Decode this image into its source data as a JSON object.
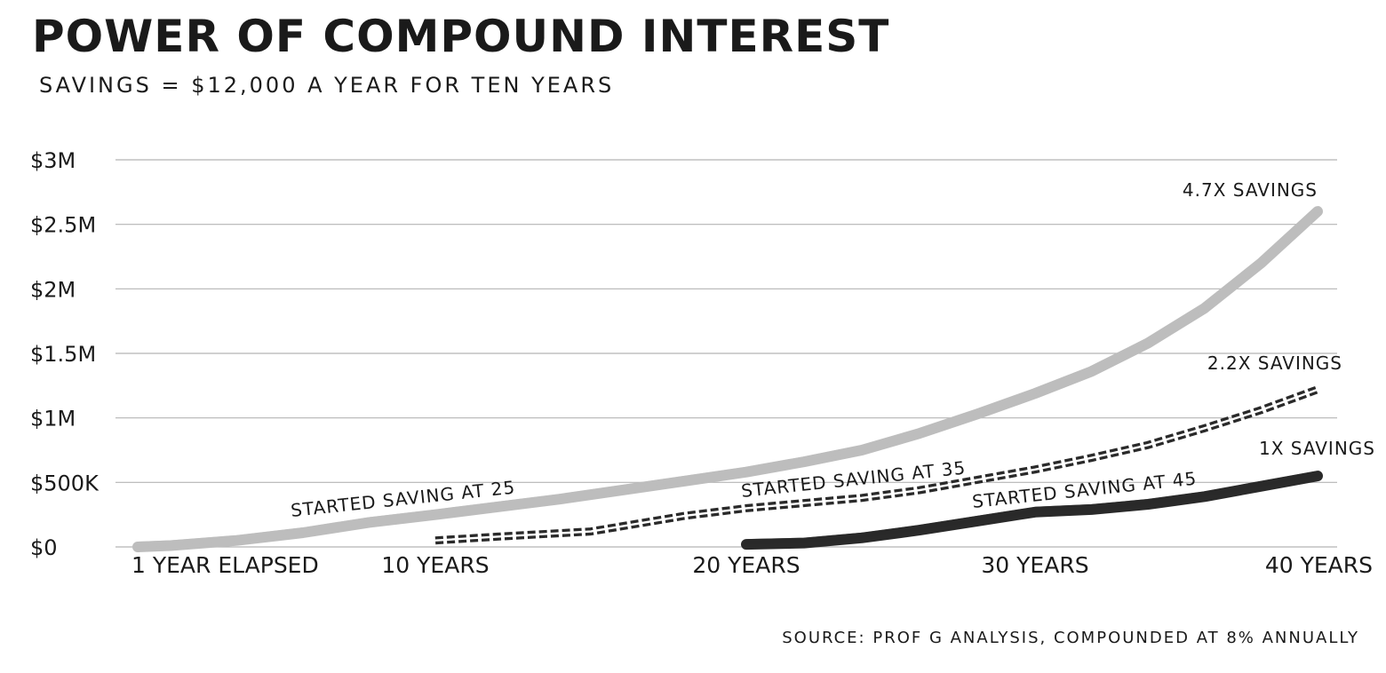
{
  "chart_data": {
    "type": "line",
    "title": "POWER OF COMPOUND INTEREST",
    "subtitle": "SAVINGS = $12,000 A YEAR FOR TEN YEARS",
    "source": "SOURCE: PROF G ANALYSIS, COMPOUNDED AT 8% ANNUALLY",
    "ylim": [
      0,
      3000000
    ],
    "xlim": [
      1,
      40
    ],
    "grid": true,
    "yticks": [
      {
        "value": 0,
        "label": "$0"
      },
      {
        "value": 500000,
        "label": "$500K"
      },
      {
        "value": 1000000,
        "label": "$1M"
      },
      {
        "value": 1500000,
        "label": "$1.5M"
      },
      {
        "value": 2000000,
        "label": "$2M"
      },
      {
        "value": 2500000,
        "label": "$2.5M"
      },
      {
        "value": 3000000,
        "label": "$3M"
      }
    ],
    "xticks": [
      {
        "value": 1,
        "label": "1 YEAR ELAPSED"
      },
      {
        "value": 10,
        "label": "10 YEARS"
      },
      {
        "value": 20,
        "label": "20 YEARS"
      },
      {
        "value": 30,
        "label": "30 YEARS"
      },
      {
        "value": 40,
        "label": "40 YEARS"
      }
    ],
    "series": [
      {
        "name": "STARTED SAVING AT 25",
        "end_label": "4.7X SAVINGS",
        "color": "#bdbdbd",
        "style": "thick",
        "points": [
          [
            1,
            0
          ],
          [
            2,
            10000
          ],
          [
            4,
            50000
          ],
          [
            6,
            110000
          ],
          [
            8,
            190000
          ],
          [
            10,
            250000
          ],
          [
            12,
            310000
          ],
          [
            14,
            370000
          ],
          [
            16,
            440000
          ],
          [
            18,
            510000
          ],
          [
            20,
            580000
          ],
          [
            22,
            660000
          ],
          [
            24,
            750000
          ],
          [
            26,
            880000
          ],
          [
            28,
            1030000
          ],
          [
            30,
            1190000
          ],
          [
            32,
            1360000
          ],
          [
            34,
            1580000
          ],
          [
            36,
            1850000
          ],
          [
            38,
            2200000
          ],
          [
            40,
            2600000
          ]
        ]
      },
      {
        "name": "STARTED SAVING AT 35",
        "end_label": "2.2X SAVINGS",
        "color": "#2a2a2a",
        "style": "double-dashed",
        "points": [
          [
            10,
            50000
          ],
          [
            12,
            80000
          ],
          [
            15,
            120000
          ],
          [
            18,
            240000
          ],
          [
            20,
            300000
          ],
          [
            22,
            340000
          ],
          [
            24,
            380000
          ],
          [
            26,
            440000
          ],
          [
            28,
            520000
          ],
          [
            30,
            600000
          ],
          [
            32,
            690000
          ],
          [
            34,
            790000
          ],
          [
            36,
            920000
          ],
          [
            38,
            1060000
          ],
          [
            40,
            1220000
          ]
        ]
      },
      {
        "name": "STARTED SAVING AT 45",
        "end_label": "1X SAVINGS",
        "color": "#2a2a2a",
        "style": "thick",
        "points": [
          [
            20,
            20000
          ],
          [
            22,
            30000
          ],
          [
            24,
            70000
          ],
          [
            26,
            130000
          ],
          [
            28,
            200000
          ],
          [
            30,
            270000
          ],
          [
            32,
            290000
          ],
          [
            34,
            330000
          ],
          [
            36,
            390000
          ],
          [
            38,
            470000
          ],
          [
            40,
            550000
          ]
        ]
      }
    ]
  }
}
